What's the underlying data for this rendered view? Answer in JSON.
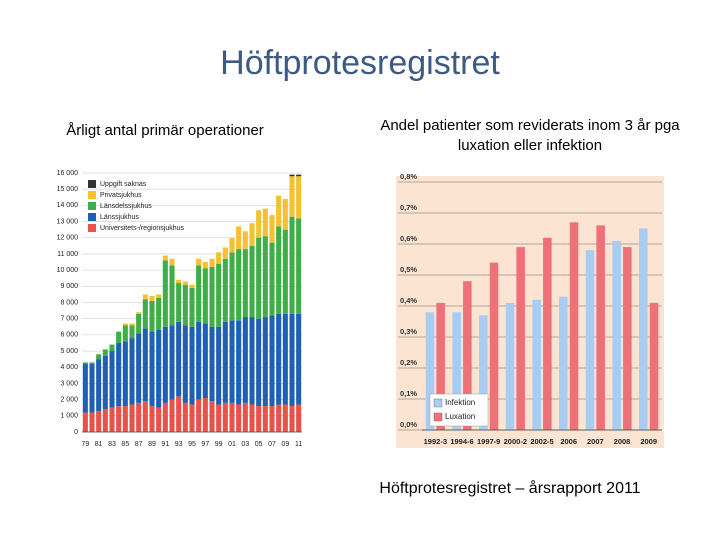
{
  "title": "Höftprotesregistret",
  "caption": "Höftprotesregistret – årsrapport 2011",
  "chart_data": [
    {
      "type": "bar",
      "stacked": true,
      "title": "Årligt antal primär operationer",
      "categories": [
        "79",
        null,
        "81",
        null,
        "83",
        null,
        "85",
        null,
        "87",
        null,
        "89",
        null,
        "91",
        null,
        "93",
        null,
        "95",
        null,
        "97",
        null,
        "99",
        null,
        "01",
        null,
        "03",
        null,
        "05",
        null,
        "07",
        null,
        "09",
        null,
        "11"
      ],
      "series": [
        {
          "name": "Universitets-/regionsjukhus",
          "color": "#e8524a",
          "values": [
            1200,
            1200,
            1300,
            1400,
            1500,
            1600,
            1600,
            1700,
            1800,
            1900,
            1600,
            1500,
            1800,
            2000,
            2200,
            1800,
            1700,
            2000,
            2100,
            1900,
            1700,
            1800,
            1800,
            1700,
            1800,
            1700,
            1600,
            1600,
            1600,
            1700,
            1700,
            1600,
            1700
          ]
        },
        {
          "name": "Länssjukhus",
          "color": "#1f5fb4",
          "values": [
            3000,
            3000,
            3200,
            3300,
            3500,
            3900,
            4000,
            4100,
            4300,
            4500,
            4600,
            4800,
            4700,
            4600,
            4600,
            4800,
            4800,
            4800,
            4600,
            4600,
            4800,
            5000,
            5100,
            5200,
            5300,
            5400,
            5400,
            5500,
            5600,
            5600,
            5600,
            5700,
            5600
          ]
        },
        {
          "name": "Länsdelssjukhus",
          "color": "#3fae49",
          "values": [
            100,
            100,
            300,
            400,
            400,
            700,
            1000,
            800,
            1200,
            1800,
            1900,
            2000,
            4100,
            3700,
            2400,
            2500,
            2400,
            3500,
            3400,
            3700,
            3900,
            3900,
            4200,
            4400,
            4200,
            4400,
            5000,
            5000,
            4500,
            5400,
            5200,
            6000,
            5900
          ]
        },
        {
          "name": "Privatsjukhus",
          "color": "#f5c12e",
          "values": [
            0,
            0,
            0,
            0,
            0,
            0,
            100,
            100,
            100,
            300,
            300,
            200,
            300,
            400,
            200,
            200,
            200,
            400,
            400,
            500,
            700,
            700,
            900,
            1400,
            1100,
            1400,
            1700,
            1700,
            1700,
            1900,
            1900,
            2500,
            2600
          ]
        },
        {
          "name": "Uppgift saknas",
          "color": "#333333",
          "values": [
            0,
            0,
            0,
            0,
            0,
            0,
            0,
            0,
            0,
            0,
            0,
            0,
            0,
            0,
            0,
            0,
            0,
            0,
            0,
            0,
            0,
            0,
            0,
            0,
            0,
            0,
            0,
            0,
            0,
            0,
            0,
            100,
            100
          ]
        }
      ],
      "legend_order": "reverse",
      "legend": "upper left",
      "ylim": [
        0,
        16000
      ],
      "yticks": [
        0,
        {
          "value": 1000,
          "label": "1 000"
        },
        {
          "value": 2000,
          "label": "2 000"
        },
        {
          "value": 3000,
          "label": "3 000"
        },
        {
          "value": 4000,
          "label": "4 000"
        },
        {
          "value": 5000,
          "label": "5 000"
        },
        {
          "value": 6000,
          "label": "6 000"
        },
        {
          "value": 7000,
          "label": "7 000"
        },
        {
          "value": 8000,
          "label": "8 000"
        },
        {
          "value": 9000,
          "label": "9 000"
        },
        {
          "value": 10000,
          "label": "10 000"
        },
        {
          "value": 11000,
          "label": "11 000"
        },
        {
          "value": 12000,
          "label": "12 000"
        },
        {
          "value": 13000,
          "label": "13 000"
        },
        {
          "value": 14000,
          "label": "14 000"
        },
        {
          "value": 15000,
          "label": "15 000"
        },
        {
          "value": 16000,
          "label": "16 000"
        }
      ],
      "grid": true
    },
    {
      "type": "bar",
      "stacked": false,
      "title": "Andel patienter som reviderats inom 3 år pga luxation eller infektion",
      "categories": [
        "1992-3",
        "1994-6",
        "1997-9",
        "2000-2",
        "2002-5",
        "2006",
        "2007",
        "2008",
        "2009"
      ],
      "series": [
        {
          "name": "Infektion",
          "color": "#a9cdf2",
          "values": [
            0.38,
            0.38,
            0.37,
            0.41,
            0.42,
            0.43,
            0.58,
            0.61,
            0.65
          ]
        },
        {
          "name": "Luxation",
          "color": "#ef7178",
          "values": [
            0.41,
            0.48,
            0.54,
            0.59,
            0.62,
            0.67,
            0.66,
            0.59,
            0.41
          ]
        }
      ],
      "legend_order": "normal",
      "legend": "lower left",
      "background": "#fbe4d2",
      "ylim": [
        0,
        0.8
      ],
      "yticks": [
        {
          "value": 0,
          "label": "0,0%"
        },
        {
          "value": 0.1,
          "label": "0,1%"
        },
        {
          "value": 0.2,
          "label": "0,2%"
        },
        {
          "value": 0.3,
          "label": "0,3%"
        },
        {
          "value": 0.4,
          "label": "0,4%"
        },
        {
          "value": 0.5,
          "label": "0,5%"
        },
        {
          "value": 0.6,
          "label": "0,6%"
        },
        {
          "value": 0.7,
          "label": "0,7%"
        },
        {
          "value": 0.8,
          "label": "0,8%"
        }
      ],
      "grid": true
    }
  ]
}
